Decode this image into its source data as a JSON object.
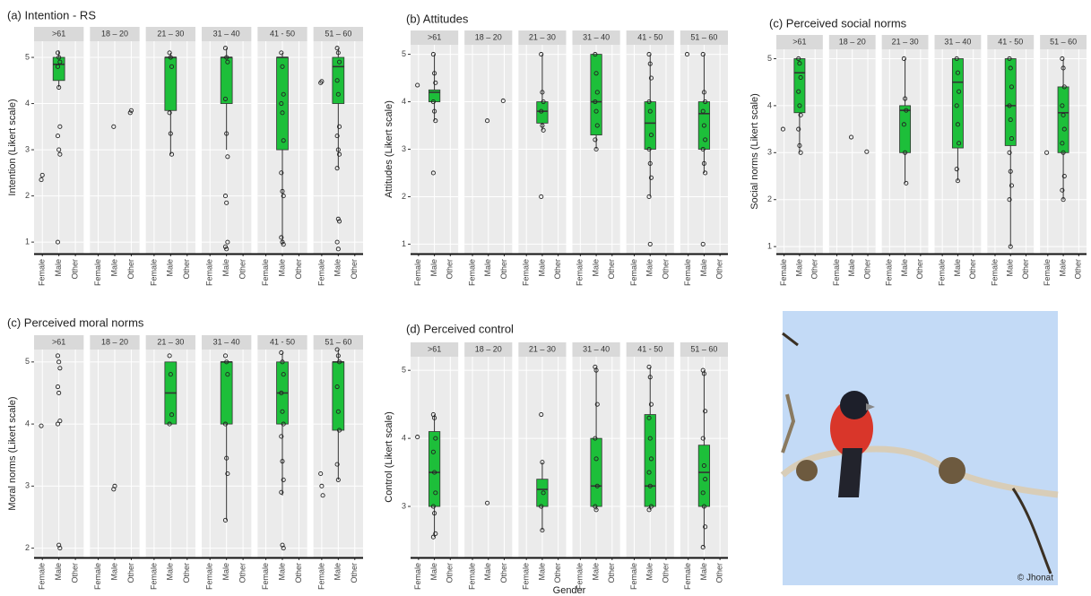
{
  "chart_data": [
    {
      "type": "box",
      "title": "(a) Intention - RS",
      "ylabel": "Intention (Likert scale)",
      "color": "#1dbf3a",
      "grid": true,
      "categories": [
        "Female",
        "Male",
        "Other"
      ],
      "ylim": [
        0.75,
        5.35
      ],
      "yticks": [
        1,
        2,
        3,
        4,
        5
      ],
      "facets": [
        {
          "label": ">61",
          "groups": [
            {
              "points": [
                2.35,
                2.45
              ]
            },
            {
              "box": {
                "min": 4.35,
                "q1": 4.5,
                "median": 4.85,
                "q3": 5,
                "max": 5.15
              },
              "points": [
                5.1,
                5,
                4.9,
                4.8,
                4.35,
                3.5,
                3.3,
                3,
                2.9,
                1
              ]
            },
            null
          ]
        },
        {
          "label": "18 – 20",
          "groups": [
            null,
            {
              "points": [
                3.5
              ]
            },
            {
              "points": [
                3.8,
                3.85
              ]
            }
          ]
        },
        {
          "label": "21 – 30",
          "groups": [
            null,
            {
              "box": {
                "min": 2.9,
                "q1": 3.85,
                "median": 5,
                "q3": 5,
                "max": 5.1
              },
              "points": [
                5.1,
                5,
                4.8,
                3.8,
                3.35,
                2.9
              ]
            },
            null
          ]
        },
        {
          "label": "31 – 40",
          "groups": [
            null,
            {
              "box": {
                "min": 3,
                "q1": 4,
                "median": 5,
                "q3": 5,
                "max": 5.2
              },
              "points": [
                5.2,
                5,
                4.9,
                4.1,
                3.35,
                2.85,
                2,
                1.85,
                1,
                0.9,
                0.85
              ]
            },
            null
          ]
        },
        {
          "label": "41 - 50",
          "groups": [
            null,
            {
              "box": {
                "min": 0.95,
                "q1": 3,
                "median": 5,
                "q3": 5,
                "max": 5.1
              },
              "points": [
                5.1,
                4.8,
                4.2,
                4,
                3.8,
                3.2,
                2.5,
                2.1,
                2,
                1.1,
                1,
                0.95
              ]
            },
            null
          ]
        },
        {
          "label": "51 – 60",
          "groups": [
            {
              "points": [
                4.45,
                4.48
              ]
            },
            {
              "box": {
                "min": 2.6,
                "q1": 4,
                "median": 4.8,
                "q3": 5,
                "max": 5.2
              },
              "points": [
                5.2,
                5.1,
                4.9,
                4.5,
                4.2,
                3.5,
                3.3,
                3,
                2.9,
                2.6,
                1.5,
                1.45,
                1,
                0.85
              ]
            },
            null
          ]
        }
      ]
    },
    {
      "type": "box",
      "title": "(b) Attitudes",
      "ylabel": "Attitudes (Likert scale)",
      "color": "#1dbf3a",
      "grid": true,
      "categories": [
        "Female",
        "Male",
        "Other"
      ],
      "ylim": [
        0.8,
        5.2
      ],
      "yticks": [
        1,
        2,
        3,
        4,
        5
      ],
      "facets": [
        {
          "label": ">61",
          "groups": [
            {
              "points": [
                4.35
              ]
            },
            {
              "box": {
                "min": 3.6,
                "q1": 4,
                "median": 4.2,
                "q3": 4.25,
                "max": 5
              },
              "points": [
                5,
                4.6,
                4.4,
                4,
                3.8,
                3.6,
                2.5
              ]
            },
            null
          ]
        },
        {
          "label": "18 – 20",
          "groups": [
            null,
            {
              "points": [
                3.6
              ]
            },
            {
              "points": [
                4.02
              ]
            }
          ]
        },
        {
          "label": "21 – 30",
          "groups": [
            null,
            {
              "box": {
                "min": 3.4,
                "q1": 3.55,
                "median": 3.8,
                "q3": 4,
                "max": 5
              },
              "points": [
                5,
                4.2,
                4,
                3.8,
                3.5,
                3.4,
                2
              ]
            },
            null
          ]
        },
        {
          "label": "31 – 40",
          "groups": [
            null,
            {
              "box": {
                "min": 3,
                "q1": 3.3,
                "median": 4,
                "q3": 5,
                "max": 5
              },
              "points": [
                5,
                4.6,
                4.2,
                4,
                3.8,
                3.5,
                3.2,
                3
              ]
            },
            null
          ]
        },
        {
          "label": "41 - 50",
          "groups": [
            null,
            {
              "box": {
                "min": 2,
                "q1": 3,
                "median": 3.55,
                "q3": 4,
                "max": 5
              },
              "points": [
                5,
                4.8,
                4.5,
                4,
                3.8,
                3.3,
                3,
                2.7,
                2.4,
                2,
                1
              ]
            },
            null
          ]
        },
        {
          "label": "51 – 60",
          "groups": [
            {
              "points": [
                5
              ]
            },
            {
              "box": {
                "min": 2.5,
                "q1": 3,
                "median": 3.75,
                "q3": 4,
                "max": 5
              },
              "points": [
                5,
                4.2,
                4,
                3.8,
                3.5,
                3.2,
                3,
                2.7,
                2.5,
                1
              ]
            },
            null
          ]
        }
      ]
    },
    {
      "type": "box",
      "title": "(c) Perceived social norms",
      "ylabel": "Social norms (Likert scale)",
      "color": "#1dbf3a",
      "grid": true,
      "categories": [
        "Female",
        "Male",
        "Other"
      ],
      "ylim": [
        0.85,
        5.2
      ],
      "yticks": [
        1,
        2,
        3,
        4,
        5
      ],
      "facets": [
        {
          "label": ">61",
          "groups": [
            {
              "points": [
                3.5
              ]
            },
            {
              "box": {
                "min": 3,
                "q1": 3.85,
                "median": 4.7,
                "q3": 5,
                "max": 5
              },
              "points": [
                5,
                4.9,
                4.6,
                4.3,
                4,
                3.8,
                3.5,
                3.15,
                3
              ]
            },
            null
          ]
        },
        {
          "label": "18 – 20",
          "groups": [
            null,
            {
              "points": [
                3.33
              ]
            },
            {
              "points": [
                3.02
              ]
            }
          ]
        },
        {
          "label": "21 – 30",
          "groups": [
            null,
            {
              "box": {
                "min": 2.35,
                "q1": 3,
                "median": 3.9,
                "q3": 4,
                "max": 5
              },
              "points": [
                5,
                4.15,
                3.9,
                3.6,
                3,
                2.35
              ]
            },
            null
          ]
        },
        {
          "label": "31 – 40",
          "groups": [
            null,
            {
              "box": {
                "min": 2.4,
                "q1": 3.1,
                "median": 4.5,
                "q3": 5,
                "max": 5
              },
              "points": [
                5,
                4.7,
                4.3,
                4,
                3.6,
                3.2,
                2.65,
                2.4
              ]
            },
            null
          ]
        },
        {
          "label": "41 - 50",
          "groups": [
            null,
            {
              "box": {
                "min": 1,
                "q1": 3.15,
                "median": 4,
                "q3": 5,
                "max": 5
              },
              "points": [
                5,
                4.8,
                4.4,
                4,
                3.7,
                3.3,
                3,
                2.6,
                2.3,
                2,
                1
              ]
            },
            null
          ]
        },
        {
          "label": "51 – 60",
          "groups": [
            {
              "points": [
                3
              ]
            },
            {
              "box": {
                "min": 2,
                "q1": 3,
                "median": 3.85,
                "q3": 4.4,
                "max": 5
              },
              "points": [
                5,
                4.8,
                4.4,
                4,
                3.8,
                3.5,
                3.2,
                3,
                2.5,
                2.2,
                2
              ]
            },
            null
          ]
        }
      ]
    },
    {
      "type": "box",
      "title": "(c) Perceived moral norms",
      "ylabel": "Moral norms (Likert scale)",
      "color": "#1dbf3a",
      "grid": true,
      "categories": [
        "Female",
        "Male",
        "Other"
      ],
      "ylim": [
        1.85,
        5.2
      ],
      "yticks": [
        2,
        3,
        4,
        5
      ],
      "facets": [
        {
          "label": ">61",
          "groups": [
            {
              "points": [
                3.97
              ]
            },
            {
              "points": [
                5.1,
                5,
                4.9,
                4.6,
                4.5,
                4.05,
                4,
                2.05,
                2
              ]
            },
            null
          ]
        },
        {
          "label": "18 – 20",
          "groups": [
            null,
            {
              "points": [
                2.95,
                3
              ]
            },
            null
          ]
        },
        {
          "label": "21 – 30",
          "groups": [
            null,
            {
              "box": {
                "min": 4,
                "q1": 4,
                "median": 4.5,
                "q3": 5,
                "max": 5
              },
              "points": [
                5.1,
                4.8,
                4.15,
                4
              ]
            },
            null
          ]
        },
        {
          "label": "31 – 40",
          "groups": [
            null,
            {
              "box": {
                "min": 2.45,
                "q1": 4,
                "median": 5,
                "q3": 5,
                "max": 5
              },
              "points": [
                5.1,
                5,
                4.8,
                4,
                3.45,
                3.2,
                2.45
              ]
            },
            null
          ]
        },
        {
          "label": "41 - 50",
          "groups": [
            null,
            {
              "box": {
                "min": 2.85,
                "q1": 4,
                "median": 4.5,
                "q3": 5,
                "max": 5.15
              },
              "points": [
                5.15,
                5,
                4.8,
                4.5,
                4.2,
                4,
                3.8,
                3.4,
                3.1,
                2.9,
                2.05,
                2
              ]
            },
            null
          ]
        },
        {
          "label": "51 – 60",
          "groups": [
            {
              "points": [
                3.2,
                3,
                2.85
              ]
            },
            {
              "box": {
                "min": 3.1,
                "q1": 3.9,
                "median": 5,
                "q3": 5,
                "max": 5.2
              },
              "points": [
                5.2,
                5.1,
                5,
                4.6,
                4.2,
                3.9,
                3.35,
                3.1
              ]
            },
            null
          ]
        }
      ]
    },
    {
      "type": "box",
      "title": "(d) Perceived control",
      "ylabel": "Control (Likert scale)",
      "xlabel": "Gender",
      "color": "#1dbf3a",
      "grid": true,
      "categories": [
        "Female",
        "Male",
        "Other"
      ],
      "ylim": [
        2.25,
        5.2
      ],
      "yticks": [
        3,
        4,
        5
      ],
      "facets": [
        {
          "label": ">61",
          "groups": [
            {
              "points": [
                4.02
              ]
            },
            {
              "box": {
                "min": 2.55,
                "q1": 3,
                "median": 3.5,
                "q3": 4.1,
                "max": 4.35
              },
              "points": [
                4.35,
                4.3,
                4,
                3.8,
                3.5,
                3.2,
                3,
                2.9,
                2.6,
                2.55
              ]
            },
            null
          ]
        },
        {
          "label": "18 – 20",
          "groups": [
            null,
            {
              "points": [
                3.05
              ]
            },
            null
          ]
        },
        {
          "label": "21 – 30",
          "groups": [
            null,
            {
              "box": {
                "min": 2.65,
                "q1": 3,
                "median": 3.25,
                "q3": 3.4,
                "max": 3.65
              },
              "points": [
                4.35,
                3.65,
                3.2,
                3,
                2.65
              ]
            },
            null
          ]
        },
        {
          "label": "31 – 40",
          "groups": [
            null,
            {
              "box": {
                "min": 2.95,
                "q1": 3,
                "median": 3.3,
                "q3": 4,
                "max": 5.05
              },
              "points": [
                5.05,
                5,
                4.5,
                4,
                3.7,
                3.3,
                3,
                2.95
              ]
            },
            null
          ]
        },
        {
          "label": "41 - 50",
          "groups": [
            null,
            {
              "box": {
                "min": 2.95,
                "q1": 3,
                "median": 3.3,
                "q3": 4.35,
                "max": 5.05
              },
              "points": [
                5.05,
                4.9,
                4.5,
                4.3,
                4,
                3.7,
                3.5,
                3.3,
                3,
                2.95
              ]
            },
            null
          ]
        },
        {
          "label": "51 – 60",
          "groups": [
            null,
            {
              "box": {
                "min": 2.4,
                "q1": 3,
                "median": 3.5,
                "q3": 3.9,
                "max": 5
              },
              "points": [
                5,
                4.95,
                4.4,
                4,
                3.6,
                3.4,
                3.2,
                3,
                2.7,
                2.4
              ]
            },
            null
          ]
        }
      ]
    }
  ],
  "photo": {
    "credit": "© Jhonat"
  }
}
